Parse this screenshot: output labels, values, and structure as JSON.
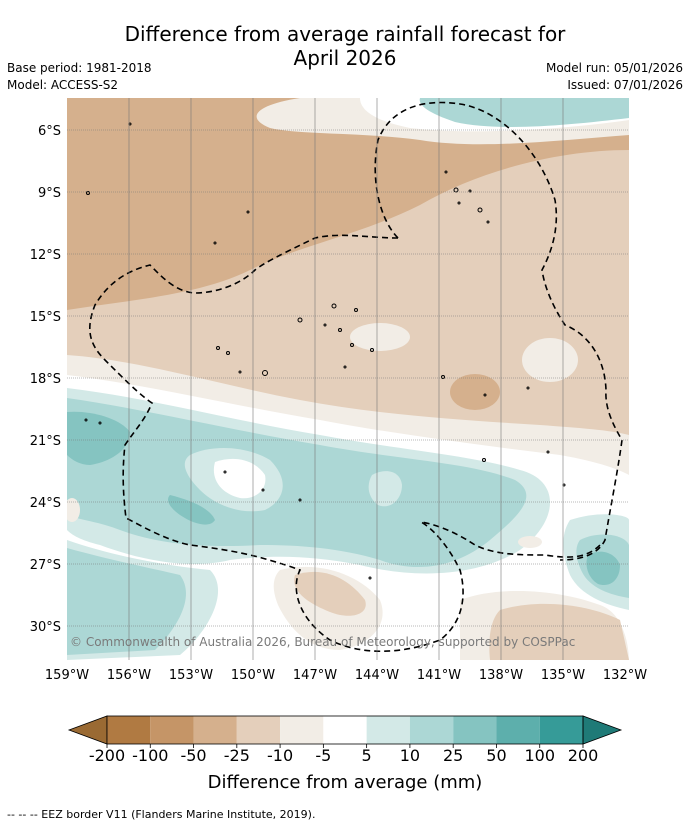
{
  "title_line1": "Difference from average rainfall forecast for",
  "title_line2": "April 2026",
  "base_period": "Base period: 1981-2018",
  "model": "Model: ACCESS-S2",
  "model_run": "Model run: 05/01/2026",
  "issued": "Issued: 07/01/2026",
  "credit": "© Commonwealth of Australia 2026, Bureau of Meteorology, supported by COSPPac",
  "lat_labels": [
    "6°S",
    "9°S",
    "12°S",
    "15°S",
    "18°S",
    "21°S",
    "24°S",
    "27°S",
    "30°S"
  ],
  "lon_labels": [
    "159°W",
    "156°W",
    "153°W",
    "150°W",
    "147°W",
    "144°W",
    "141°W",
    "138°W",
    "135°W",
    "132°W"
  ],
  "colorbar": {
    "title": "Difference from average (mm)",
    "ticks": [
      "-200",
      "-100",
      "-50",
      "-25",
      "-10",
      "-5",
      "5",
      "10",
      "25",
      "50",
      "100",
      "200"
    ],
    "colors": [
      "#9a6a33",
      "#b07a42",
      "#c59567",
      "#d5b08d",
      "#e4cfbb",
      "#f2ede6",
      "#ffffff",
      "#d3e9e7",
      "#acd7d5",
      "#85c4c1",
      "#5dafac",
      "#369b98",
      "#1f7a77"
    ]
  },
  "legend_note": "-- -- -- EEZ border V11 (Flanders Marine Institute, 2019)."
}
